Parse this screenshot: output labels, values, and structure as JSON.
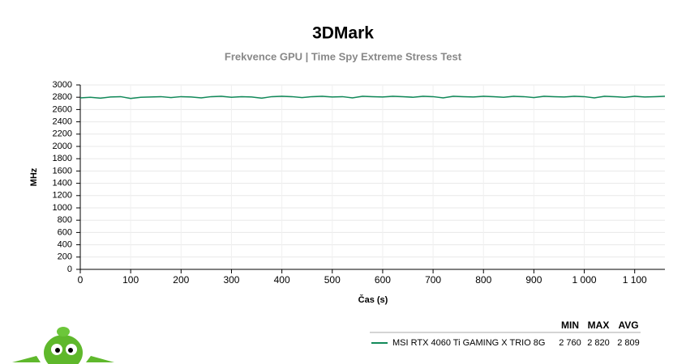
{
  "chart_data": {
    "type": "line",
    "title": "3DMark",
    "subtitle": "Frekvence GPU | Time Spy Extreme Stress Test",
    "x_label": "Čas (s)",
    "y_label": "MHz",
    "x": [
      0,
      20,
      40,
      60,
      80,
      100,
      120,
      140,
      160,
      180,
      200,
      220,
      240,
      260,
      280,
      300,
      320,
      340,
      360,
      380,
      400,
      420,
      440,
      460,
      480,
      500,
      520,
      540,
      560,
      580,
      600,
      620,
      640,
      660,
      680,
      700,
      720,
      740,
      760,
      780,
      800,
      820,
      840,
      860,
      880,
      900,
      920,
      940,
      960,
      980,
      1000,
      1020,
      1040,
      1060,
      1080,
      1100,
      1120,
      1140,
      1160
    ],
    "series": [
      {
        "name": "MSI RTX 4060 Ti GAMING X TRIO 8G",
        "color": "#128a5a",
        "values": [
          2790,
          2800,
          2785,
          2805,
          2810,
          2780,
          2800,
          2805,
          2810,
          2795,
          2810,
          2805,
          2790,
          2810,
          2815,
          2800,
          2810,
          2805,
          2785,
          2810,
          2815,
          2810,
          2795,
          2810,
          2815,
          2805,
          2810,
          2790,
          2815,
          2810,
          2805,
          2815,
          2810,
          2800,
          2815,
          2810,
          2790,
          2815,
          2810,
          2805,
          2815,
          2810,
          2800,
          2815,
          2810,
          2795,
          2815,
          2810,
          2805,
          2815,
          2810,
          2790,
          2815,
          2810,
          2800,
          2815,
          2805,
          2810,
          2815
        ]
      }
    ],
    "xlim": [
      0,
      1160
    ],
    "ylim": [
      0,
      3000
    ],
    "xticks": [
      0,
      100,
      200,
      300,
      400,
      500,
      600,
      700,
      800,
      900,
      {
        "value": 1000,
        "label": "1 000"
      },
      {
        "value": 1100,
        "label": "1 100"
      }
    ],
    "yticks": [
      0,
      200,
      400,
      600,
      800,
      1000,
      1200,
      1400,
      1600,
      1800,
      2000,
      2200,
      2400,
      2600,
      2800,
      3000
    ],
    "grid": true,
    "stats": {
      "headers": [
        "MIN",
        "MAX",
        "AVG"
      ],
      "values": [
        {
          "value": 2760,
          "label": "2 760"
        },
        {
          "value": 2820,
          "label": "2 820"
        },
        {
          "value": 2809,
          "label": "2 809"
        }
      ]
    }
  }
}
